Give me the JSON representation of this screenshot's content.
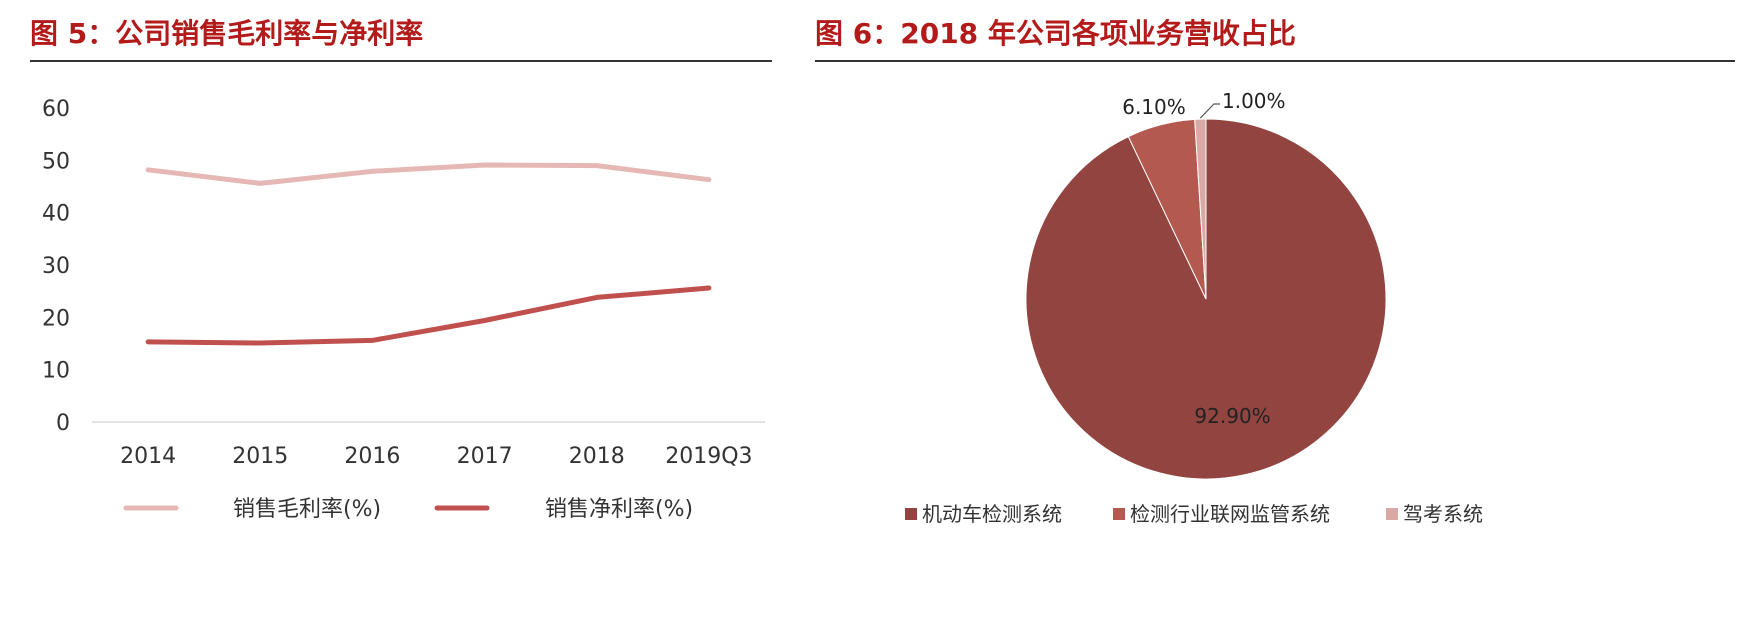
{
  "fig5": {
    "title": "图 5：公司销售毛利率与净利率",
    "chart_data": {
      "type": "line",
      "title": "图 5：公司销售毛利率与净利率",
      "categories": [
        "2014",
        "2015",
        "2016",
        "2017",
        "2018",
        "2019Q3"
      ],
      "y_ticks": [
        "0",
        "10",
        "20",
        "30",
        "40",
        "50",
        "60"
      ],
      "ylim": [
        0,
        60
      ],
      "xlabel": "",
      "ylabel": "",
      "grid": false,
      "legend_position": "bottom",
      "series": [
        {
          "name": "销售毛利率(%)",
          "color": "#e6b8b5",
          "values": [
            48.2,
            45.6,
            47.9,
            49.1,
            49.0,
            46.3
          ]
        },
        {
          "name": "销售净利率(%)",
          "color": "#c0504d",
          "values": [
            15.3,
            15.1,
            15.6,
            19.4,
            23.8,
            25.6
          ]
        }
      ]
    }
  },
  "fig6": {
    "title": "图 6：2018 年公司各项业务营收占比",
    "chart_data": {
      "type": "pie",
      "title": "图 6：2018 年公司各项业务营收占比",
      "legend_position": "bottom",
      "slices": [
        {
          "name": "机动车检测系统",
          "value": 92.9,
          "label": "92.90%",
          "color": "#924440"
        },
        {
          "name": "检测行业联网监管系统",
          "value": 6.1,
          "label": "6.10%",
          "color": "#b4594f"
        },
        {
          "name": "驾考系统",
          "value": 1.0,
          "label": "1.00%",
          "color": "#d9a9a5"
        }
      ]
    }
  }
}
